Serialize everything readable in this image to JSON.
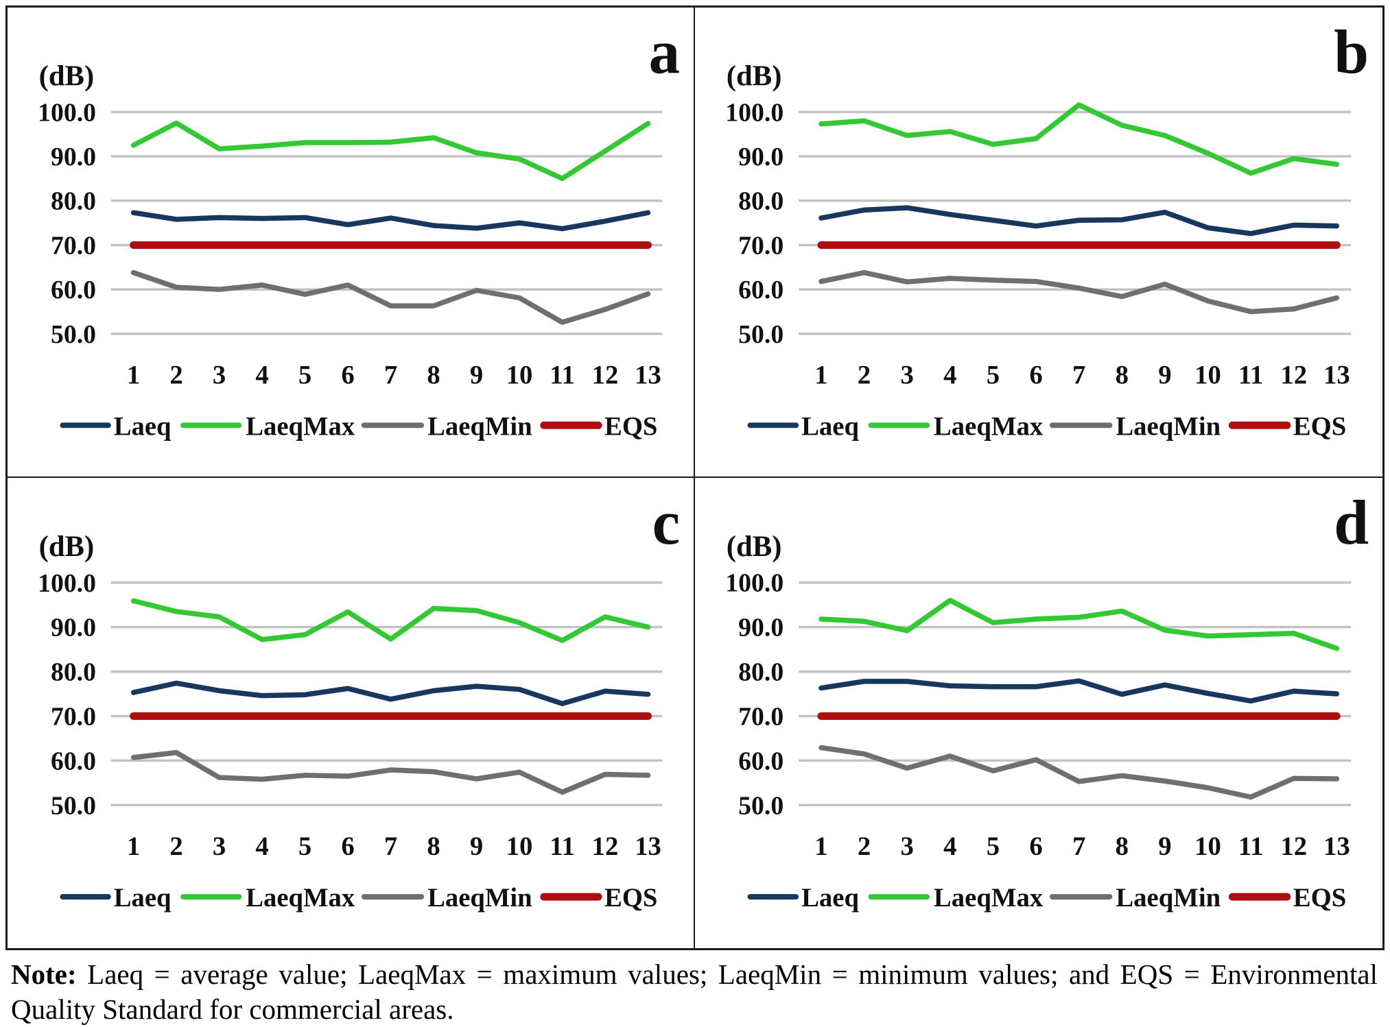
{
  "figure": {
    "legend": [
      "Laeq",
      "LaeqMax",
      "LaeqMin",
      "EQS"
    ],
    "colors": {
      "laeq": "#17375E",
      "laeqmax": "#35C835",
      "laeqmin": "#6F6F6F",
      "eqs": "#AE0E0E",
      "grid": "#C3C3C3",
      "text": "#111111"
    }
  },
  "chart_data": [
    {
      "panel": "a",
      "type": "line",
      "ylabel": "(dB)",
      "ylim": [
        45,
        106
      ],
      "y_ticks": [
        100,
        90,
        80,
        70,
        60,
        50
      ],
      "x": [
        1,
        2,
        3,
        4,
        5,
        6,
        7,
        8,
        9,
        10,
        11,
        12,
        13
      ],
      "legend_position": "bottom",
      "grid": true,
      "series": [
        {
          "name": "Laeq",
          "values": [
            77.3,
            75.8,
            76.2,
            76.0,
            76.2,
            74.6,
            76.1,
            74.4,
            73.8,
            75.0,
            73.7,
            75.4,
            77.3
          ]
        },
        {
          "name": "LaeqMax",
          "values": [
            92.5,
            97.5,
            91.7,
            92.3,
            93.1,
            93.1,
            93.2,
            94.2,
            90.8,
            89.4,
            85.0,
            91.2,
            97.4
          ]
        },
        {
          "name": "LaeqMin",
          "values": [
            63.8,
            60.5,
            60.0,
            61.0,
            58.9,
            61.0,
            56.3,
            56.3,
            59.8,
            58.1,
            52.6,
            55.5,
            59.0
          ]
        },
        {
          "name": "EQS",
          "values": [
            70,
            70,
            70,
            70,
            70,
            70,
            70,
            70,
            70,
            70,
            70,
            70,
            70
          ]
        }
      ]
    },
    {
      "panel": "b",
      "type": "line",
      "ylabel": "(dB)",
      "ylim": [
        45,
        106
      ],
      "y_ticks": [
        100,
        90,
        80,
        70,
        60,
        50
      ],
      "x": [
        1,
        2,
        3,
        4,
        5,
        6,
        7,
        8,
        9,
        10,
        11,
        12,
        13
      ],
      "legend_position": "bottom",
      "grid": true,
      "series": [
        {
          "name": "Laeq",
          "values": [
            76.1,
            77.9,
            78.4,
            76.9,
            75.6,
            74.3,
            75.6,
            75.7,
            77.4,
            73.9,
            72.6,
            74.5,
            74.3
          ]
        },
        {
          "name": "LaeqMax",
          "values": [
            97.3,
            98.0,
            94.7,
            95.6,
            92.7,
            94.0,
            101.6,
            97.0,
            94.7,
            90.7,
            86.2,
            89.5,
            88.2
          ]
        },
        {
          "name": "LaeqMin",
          "values": [
            61.8,
            63.8,
            61.7,
            62.5,
            62.1,
            61.8,
            60.3,
            58.4,
            61.2,
            57.4,
            55.0,
            55.6,
            58.1
          ]
        },
        {
          "name": "EQS",
          "values": [
            70,
            70,
            70,
            70,
            70,
            70,
            70,
            70,
            70,
            70,
            70,
            70,
            70
          ]
        }
      ]
    },
    {
      "panel": "c",
      "type": "line",
      "ylabel": "(dB)",
      "ylim": [
        45,
        106
      ],
      "y_ticks": [
        100,
        90,
        80,
        70,
        60,
        50
      ],
      "x": [
        1,
        2,
        3,
        4,
        5,
        6,
        7,
        8,
        9,
        10,
        11,
        12,
        13
      ],
      "legend_position": "bottom",
      "grid": true,
      "series": [
        {
          "name": "Laeq",
          "values": [
            75.3,
            77.4,
            75.7,
            74.6,
            74.8,
            76.2,
            73.8,
            75.7,
            76.7,
            76.0,
            72.8,
            75.6,
            74.9
          ]
        },
        {
          "name": "LaeqMax",
          "values": [
            95.9,
            93.5,
            92.3,
            87.2,
            88.3,
            93.4,
            87.3,
            94.2,
            93.7,
            91.0,
            87.0,
            92.3,
            90.0
          ]
        },
        {
          "name": "LaeqMin",
          "values": [
            60.7,
            61.8,
            56.2,
            55.8,
            56.7,
            56.5,
            57.9,
            57.5,
            55.9,
            57.4,
            52.9,
            56.9,
            56.7
          ]
        },
        {
          "name": "EQS",
          "values": [
            70,
            70,
            70,
            70,
            70,
            70,
            70,
            70,
            70,
            70,
            70,
            70,
            70
          ]
        }
      ]
    },
    {
      "panel": "d",
      "type": "line",
      "ylabel": "(dB)",
      "ylim": [
        45,
        106
      ],
      "y_ticks": [
        100,
        90,
        80,
        70,
        60,
        50
      ],
      "x": [
        1,
        2,
        3,
        4,
        5,
        6,
        7,
        8,
        9,
        10,
        11,
        12,
        13
      ],
      "legend_position": "bottom",
      "grid": true,
      "series": [
        {
          "name": "Laeq",
          "values": [
            76.3,
            77.8,
            77.8,
            76.8,
            76.6,
            76.6,
            77.9,
            74.9,
            77.0,
            75.1,
            73.4,
            75.6,
            75.0
          ]
        },
        {
          "name": "LaeqMax",
          "values": [
            91.8,
            91.3,
            89.2,
            96.0,
            91.0,
            91.8,
            92.2,
            93.6,
            89.3,
            88.0,
            88.3,
            88.6,
            85.2
          ]
        },
        {
          "name": "LaeqMin",
          "values": [
            62.9,
            61.5,
            58.3,
            61.0,
            57.7,
            60.2,
            55.3,
            56.6,
            55.4,
            53.9,
            51.8,
            56.0,
            55.9
          ]
        },
        {
          "name": "EQS",
          "values": [
            70,
            70,
            70,
            70,
            70,
            70,
            70,
            70,
            70,
            70,
            70,
            70,
            70
          ]
        }
      ]
    }
  ],
  "note": {
    "label": "Note:",
    "text": " Laeq = average value; LaeqMax = maximum values; LaeqMin = minimum values; and EQS = Environmental Quality Standard for commercial areas."
  }
}
